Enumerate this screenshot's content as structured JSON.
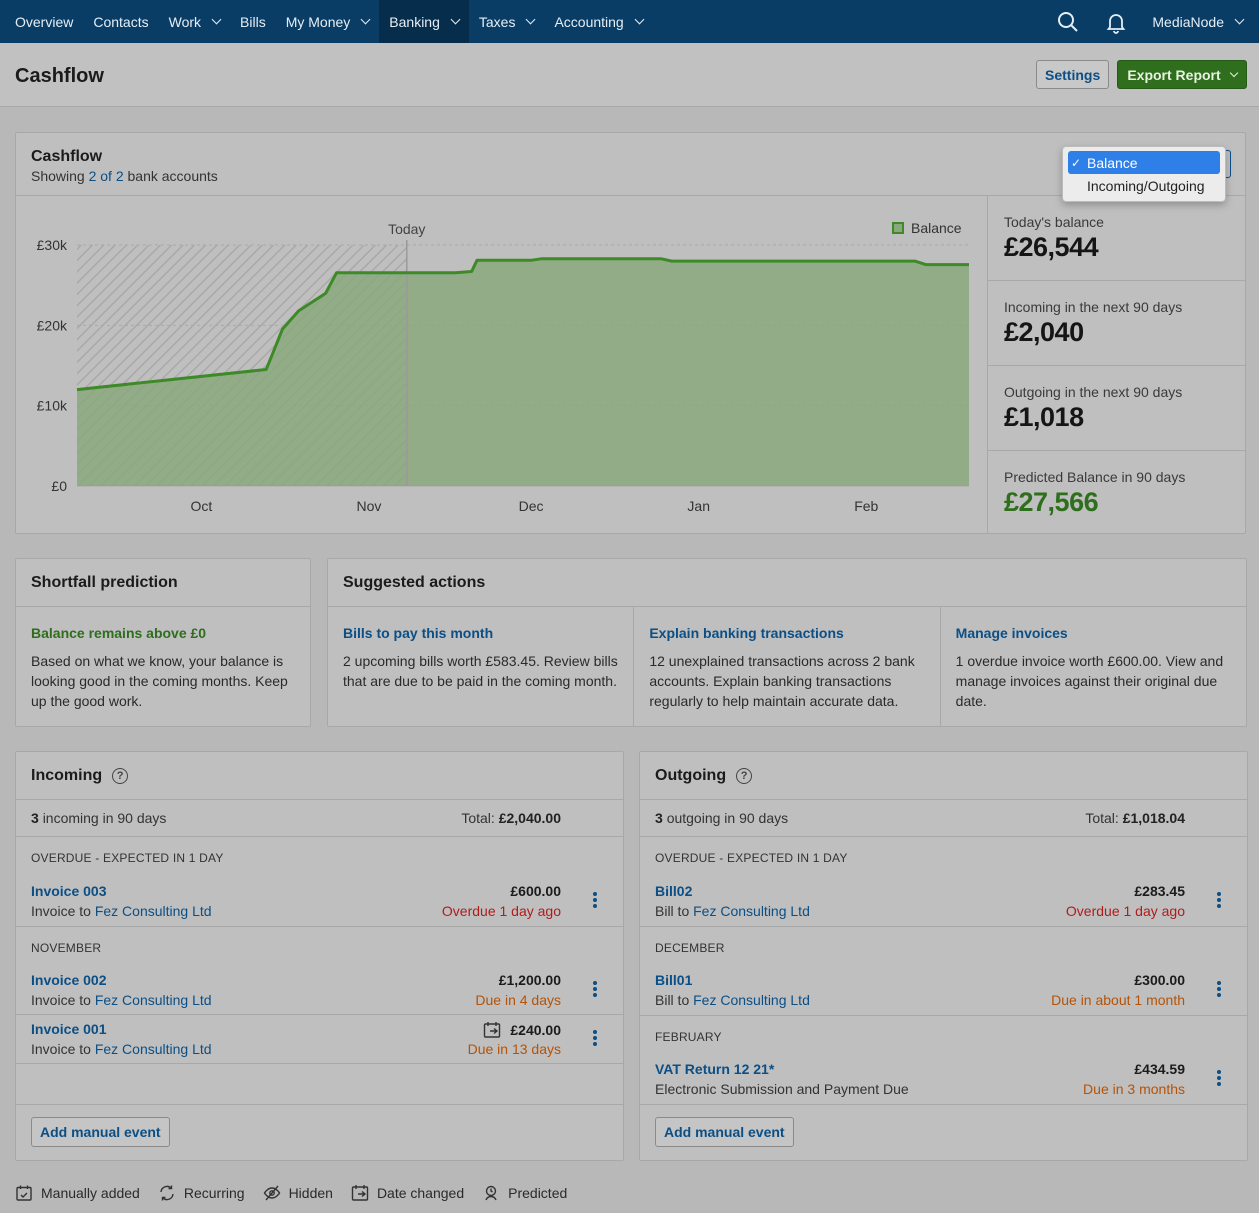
{
  "nav": {
    "items": [
      {
        "label": "Overview",
        "has_menu": false
      },
      {
        "label": "Contacts",
        "has_menu": false
      },
      {
        "label": "Work",
        "has_menu": true
      },
      {
        "label": "Bills",
        "has_menu": false
      },
      {
        "label": "My Money",
        "has_menu": true
      },
      {
        "label": "Banking",
        "has_menu": true,
        "active": true
      },
      {
        "label": "Taxes",
        "has_menu": true
      },
      {
        "label": "Accounting",
        "has_menu": true
      }
    ],
    "user": "MediaNode",
    "icons": [
      "search-icon",
      "bell-icon"
    ]
  },
  "header": {
    "title": "Cashflow",
    "settings_label": "Settings",
    "export_label": "Export Report"
  },
  "cashflow": {
    "title": "Cashflow",
    "sub_prefix": "Showing",
    "sub_link": "2 of 2",
    "sub_suffix": "bank accounts",
    "dropdown": {
      "options": [
        "Balance",
        "Incoming/Outgoing"
      ],
      "selected": "Balance",
      "check": "✓"
    },
    "stats": [
      {
        "label": "Today's balance",
        "value": "£26,544",
        "highlight": false
      },
      {
        "label": "Incoming in the next 90 days",
        "value": "£2,040",
        "highlight": false
      },
      {
        "label": "Outgoing in the next 90 days",
        "value": "£1,018",
        "highlight": false
      },
      {
        "label": "Predicted Balance in 90 days",
        "value": "£27,566",
        "highlight": true
      }
    ]
  },
  "chart_data": {
    "type": "area",
    "legend": [
      "Balance"
    ],
    "legend_position": "top-right",
    "today_label": "Today",
    "y_ticks": [
      "£0",
      "£10k",
      "£20k",
      "£30k"
    ],
    "ylim": [
      0,
      30000
    ],
    "x_labels": [
      "Oct",
      "Nov",
      "Dec",
      "Jan",
      "Feb"
    ],
    "series": [
      {
        "name": "Balance",
        "color": "#3d8a26",
        "points": [
          {
            "x": "Sep 22",
            "y": 12000
          },
          {
            "x": "Oct 27",
            "y": 14500
          },
          {
            "x": "Oct 30",
            "y": 19500
          },
          {
            "x": "Nov 2",
            "y": 21800
          },
          {
            "x": "Nov 7",
            "y": 24000
          },
          {
            "x": "Nov 9",
            "y": 26544
          },
          {
            "x": "Nov 22",
            "y": 26544
          },
          {
            "x": "Dec 1",
            "y": 26544
          },
          {
            "x": "Dec 4",
            "y": 26700
          },
          {
            "x": "Dec 5",
            "y": 28100
          },
          {
            "x": "Dec 15",
            "y": 28100
          },
          {
            "x": "Dec 17",
            "y": 28300
          },
          {
            "x": "Jan 8",
            "y": 28300
          },
          {
            "x": "Jan 10",
            "y": 28000
          },
          {
            "x": "Feb 24",
            "y": 28000
          },
          {
            "x": "Feb 26",
            "y": 27566
          },
          {
            "x": "Mar 6",
            "y": 27566
          }
        ]
      }
    ],
    "colors": {
      "line": "#3d8a26",
      "fill": "#8aa87e",
      "past_hatch": "#a9a9a9",
      "today_line": "#9a9a9a",
      "grid": "#a9a9a9"
    }
  },
  "shortfall": {
    "title": "Shortfall prediction",
    "status": "Balance remains above £0",
    "text": "Based on what we know, your balance is looking good in the coming months. Keep up the good work."
  },
  "suggestions": {
    "title": "Suggested actions",
    "items": [
      {
        "title": "Bills to pay this month",
        "text": "2 upcoming bills worth £583.45. Review bills that are due to be paid in the coming month."
      },
      {
        "title": "Explain banking transactions",
        "text": "12 unexplained transactions across 2 bank accounts. Explain banking transactions regularly to help maintain accurate data."
      },
      {
        "title": "Manage invoices",
        "text": "1 overdue invoice worth £600.00. View and manage invoices against their original due date."
      }
    ]
  },
  "incoming": {
    "title": "Incoming",
    "count": "3",
    "count_text": "incoming in 90 days",
    "total_label": "Total:",
    "total": "£2,040.00",
    "groups": [
      {
        "label": "OVERDUE - EXPECTED IN 1 DAY",
        "events": [
          {
            "name": "Invoice 003",
            "prefix": "Invoice to",
            "contact": "Fez Consulting Ltd",
            "amount": "£600.00",
            "status": "Overdue 1 day ago",
            "status_type": "red",
            "date_changed": false
          }
        ]
      },
      {
        "label": "NOVEMBER",
        "events": [
          {
            "name": "Invoice 002",
            "prefix": "Invoice to",
            "contact": "Fez Consulting Ltd",
            "amount": "£1,200.00",
            "status": "Due in 4 days",
            "status_type": "orange",
            "date_changed": false
          },
          {
            "name": "Invoice 001",
            "prefix": "Invoice to",
            "contact": "Fez Consulting Ltd",
            "amount": "£240.00",
            "status": "Due in 13 days",
            "status_type": "orange",
            "date_changed": true
          }
        ]
      }
    ],
    "add_label": "Add manual event"
  },
  "outgoing": {
    "title": "Outgoing",
    "count": "3",
    "count_text": "outgoing in 90 days",
    "total_label": "Total:",
    "total": "£1,018.04",
    "groups": [
      {
        "label": "OVERDUE - EXPECTED IN 1 DAY",
        "events": [
          {
            "name": "Bill02",
            "prefix": "Bill to",
            "contact": "Fez Consulting Ltd",
            "amount": "£283.45",
            "status": "Overdue 1 day ago",
            "status_type": "red",
            "date_changed": false
          }
        ]
      },
      {
        "label": "DECEMBER",
        "events": [
          {
            "name": "Bill01",
            "prefix": "Bill to",
            "contact": "Fez Consulting Ltd",
            "amount": "£300.00",
            "status": "Due in about 1 month",
            "status_type": "orange",
            "date_changed": false
          }
        ]
      },
      {
        "label": "FEBRUARY",
        "events": [
          {
            "name": "VAT Return 12 21*",
            "prefix": "Electronic Submission and Payment Due",
            "contact": "",
            "amount": "£434.59",
            "status": "Due in 3 months",
            "status_type": "orange",
            "date_changed": false
          }
        ]
      }
    ],
    "add_label": "Add manual event"
  },
  "legend": [
    {
      "icon": "manual-calendar-icon",
      "label": "Manually added"
    },
    {
      "icon": "recurring-icon",
      "label": "Recurring"
    },
    {
      "icon": "hidden-eye-icon",
      "label": "Hidden"
    },
    {
      "icon": "date-changed-icon",
      "label": "Date changed"
    },
    {
      "icon": "predicted-icon",
      "label": "Predicted"
    }
  ]
}
